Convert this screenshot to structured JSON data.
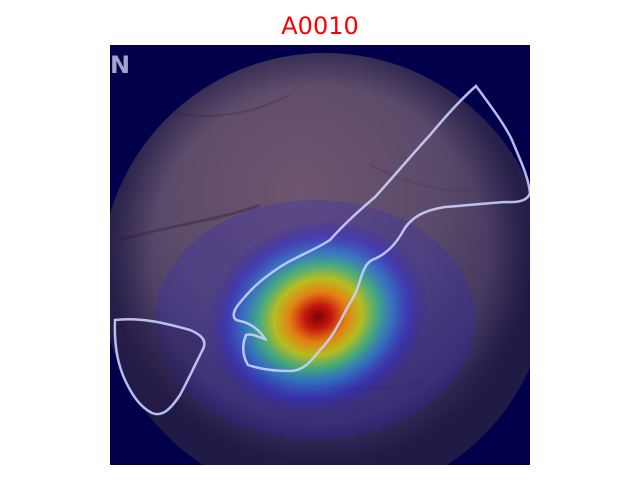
{
  "figure": {
    "title": "A0010",
    "title_color": "#ff0000",
    "corner_mark": "N"
  },
  "image": {
    "description_free": true,
    "background_color": "#02004a",
    "outline_color": "#c8d0ff",
    "heatmap_colormap": "jet"
  }
}
